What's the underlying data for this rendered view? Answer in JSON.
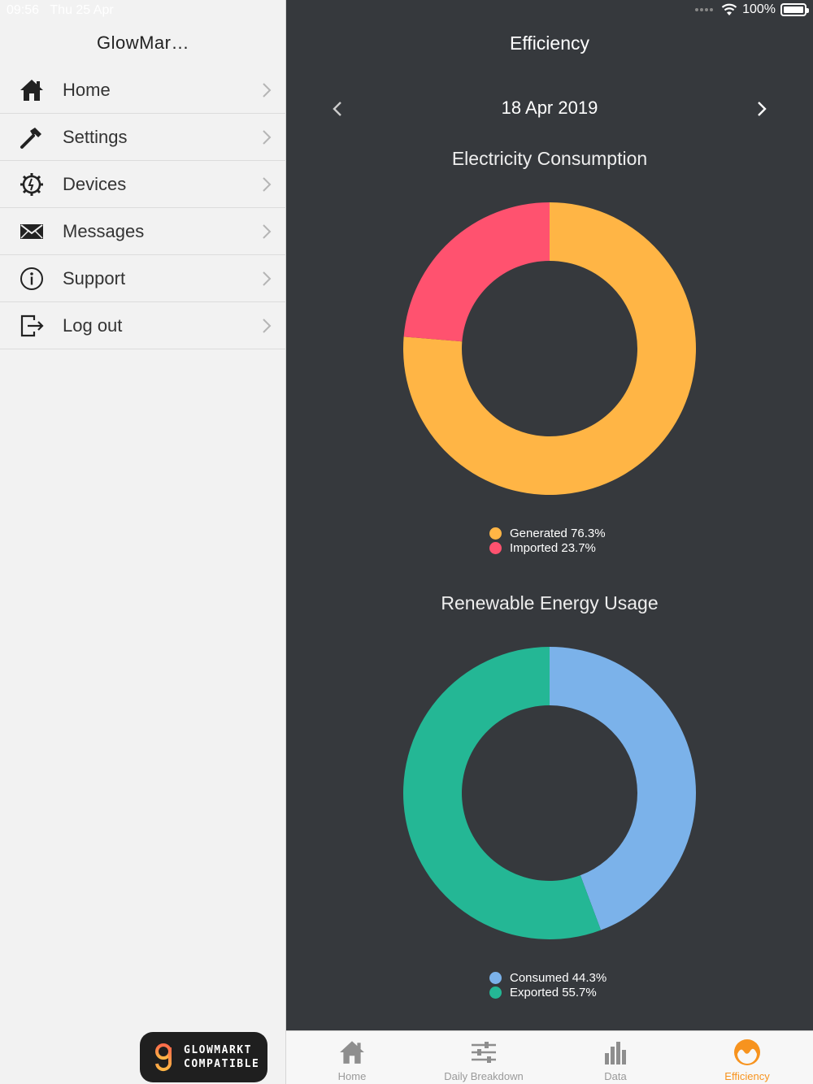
{
  "status_bar": {
    "time": "09:56",
    "date": "Thu 25 Apr",
    "battery": "100%"
  },
  "sidebar": {
    "title": "GlowMar…",
    "items": [
      {
        "label": "Home",
        "icon": "home-icon"
      },
      {
        "label": "Settings",
        "icon": "hammer-icon"
      },
      {
        "label": "Devices",
        "icon": "gear-icon"
      },
      {
        "label": "Messages",
        "icon": "envelope-icon"
      },
      {
        "label": "Support",
        "icon": "info-icon"
      },
      {
        "label": "Log out",
        "icon": "logout-icon"
      }
    ],
    "badge": {
      "line1": "GLOWMARKT",
      "line2": "COMPATIBLE"
    }
  },
  "main": {
    "title": "Efficiency",
    "date": "18 Apr 2019"
  },
  "colors": {
    "generated": "#ffb545",
    "imported": "#ff526f",
    "consumed": "#7bb2ea",
    "exported": "#24b795",
    "accent": "#f7931e",
    "panel": "#36393d"
  },
  "chart_data": [
    {
      "type": "pie",
      "title": "Electricity Consumption",
      "slices": [
        {
          "name": "Generated",
          "value": 76.3,
          "label": "Generated 76.3%"
        },
        {
          "name": "Imported",
          "value": 23.7,
          "label": "Imported 23.7%"
        }
      ]
    },
    {
      "type": "pie",
      "title": "Renewable Energy Usage",
      "slices": [
        {
          "name": "Consumed",
          "value": 44.3,
          "label": "Consumed 44.3%"
        },
        {
          "name": "Exported",
          "value": 55.7,
          "label": "Exported 55.7%"
        }
      ]
    }
  ],
  "tabbar": {
    "tabs": [
      {
        "label": "Home",
        "icon": "home-icon"
      },
      {
        "label": "Daily Breakdown",
        "icon": "sliders-icon"
      },
      {
        "label": "Data",
        "icon": "bar-chart-icon"
      },
      {
        "label": "Efficiency",
        "icon": "efficiency-icon",
        "active": true
      }
    ]
  }
}
